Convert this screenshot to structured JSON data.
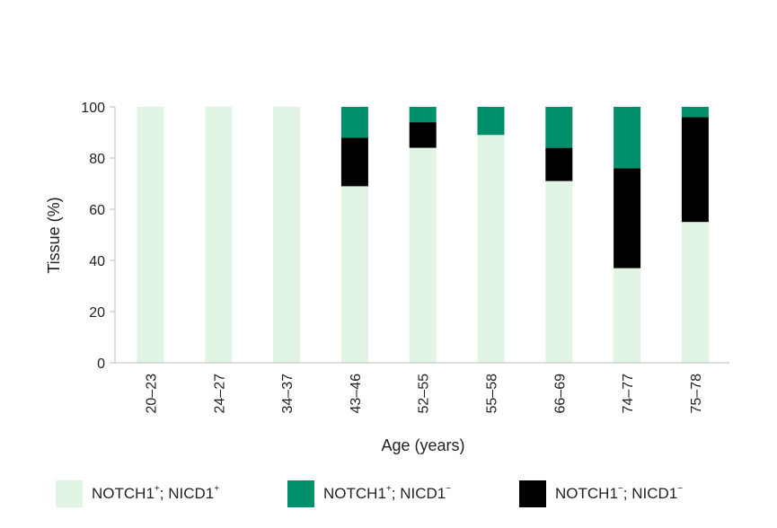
{
  "chart_data": {
    "type": "bar",
    "stacked": true,
    "categories": [
      "20–23",
      "24–27",
      "34–37",
      "43–46",
      "52–55",
      "55–58",
      "66–69",
      "74–77",
      "75–78"
    ],
    "series": [
      {
        "name": "NOTCH1+; NICD1+",
        "color": "#e2f4e3",
        "values": [
          100,
          100,
          100,
          69,
          84,
          89,
          71,
          37,
          55
        ]
      },
      {
        "name": "NOTCH1−; NICD1−",
        "color": "#000000",
        "values": [
          0,
          0,
          0,
          19,
          10,
          0,
          13,
          39,
          41
        ]
      },
      {
        "name": "NOTCH1+; NICD1−",
        "color": "#008f6b",
        "values": [
          0,
          0,
          0,
          12,
          6,
          11,
          16,
          24,
          4
        ]
      }
    ],
    "xlabel": "Age (years)",
    "ylabel": "Tissue (%)",
    "ylim": [
      0,
      100
    ],
    "yticks": [
      0,
      20,
      40,
      60,
      80,
      100
    ],
    "grid": false,
    "legend_position": "bottom"
  },
  "legend": [
    {
      "base": "NOTCH1",
      "sup1": "+",
      "rest": "; NICD1",
      "sup2": "+",
      "color": "#e2f4e3"
    },
    {
      "base": "NOTCH1",
      "sup1": "+",
      "rest": "; NICD1",
      "sup2": "−",
      "color": "#008f6b"
    },
    {
      "base": "NOTCH1",
      "sup1": "−",
      "rest": "; NICD1",
      "sup2": "−",
      "color": "#000000"
    }
  ]
}
